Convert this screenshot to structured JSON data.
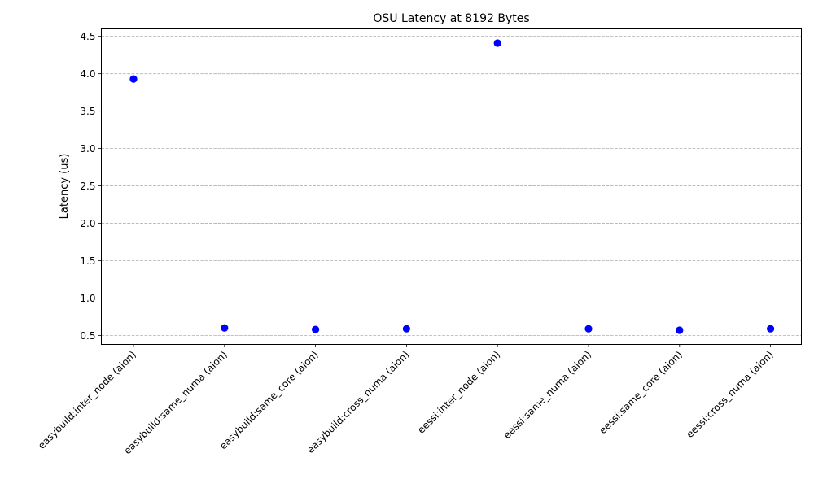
{
  "chart_data": {
    "type": "scatter",
    "title": "OSU Latency at 8192 Bytes",
    "xlabel": "",
    "ylabel": "Latency (us)",
    "categories": [
      "easybuild:inter_node (aion)",
      "easybuild:same_numa (aion)",
      "easybuild:same_core (aion)",
      "easybuild:cross_numa (aion)",
      "eessi:inter_node (aion)",
      "eessi:same_numa (aion)",
      "eessi:same_core (aion)",
      "eessi:cross_numa (aion)"
    ],
    "values": [
      3.93,
      0.6,
      0.58,
      0.59,
      4.41,
      0.59,
      0.57,
      0.59
    ],
    "ylim": [
      0.38,
      4.6
    ],
    "yticks": [
      0.5,
      1.0,
      1.5,
      2.0,
      2.5,
      3.0,
      3.5,
      4.0,
      4.5
    ],
    "ytick_labels": [
      "0.5",
      "1.0",
      "1.5",
      "2.0",
      "2.5",
      "3.0",
      "3.5",
      "4.0",
      "4.5"
    ],
    "grid": "y-dashed",
    "marker_color": "#0000ff",
    "grid_color": "#b0b0b0"
  }
}
